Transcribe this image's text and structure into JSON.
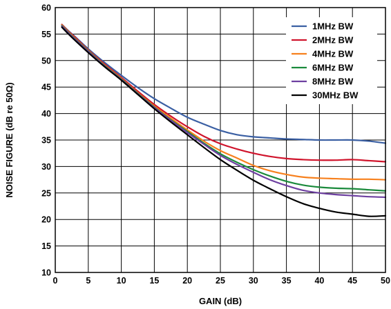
{
  "chart_data": {
    "type": "line",
    "title": "",
    "xlabel": "GAIN (dB)",
    "ylabel": "NOISE FIGURE (dB re 50Ω)",
    "xlim": [
      0,
      50
    ],
    "ylim": [
      10,
      60
    ],
    "xticks": [
      0,
      5,
      10,
      15,
      20,
      25,
      30,
      35,
      40,
      45,
      50
    ],
    "yticks": [
      10,
      15,
      20,
      25,
      30,
      35,
      40,
      45,
      50,
      55,
      60
    ],
    "grid": true,
    "legend_position": "top-right",
    "series": [
      {
        "name": "1MHz BW",
        "color": "#3a5fa3",
        "x": [
          1,
          2,
          3,
          5,
          7.5,
          10,
          12.5,
          15,
          17.5,
          20,
          22.5,
          25,
          27.5,
          30,
          32.5,
          35,
          37.5,
          40,
          42.5,
          45,
          47.5,
          50
        ],
        "y": [
          56.8,
          55.6,
          54.5,
          52.2,
          49.6,
          47.2,
          44.9,
          42.8,
          41.0,
          39.3,
          38.0,
          36.8,
          36.0,
          35.6,
          35.4,
          35.2,
          35.1,
          35.0,
          35.0,
          35.0,
          34.8,
          34.4
        ]
      },
      {
        "name": "2MHz BW",
        "color": "#d0142c",
        "x": [
          1,
          2,
          3,
          5,
          7.5,
          10,
          12.5,
          15,
          17.5,
          20,
          22.5,
          25,
          27.5,
          30,
          32.5,
          35,
          37.5,
          40,
          42.5,
          45,
          47.5,
          50
        ],
        "y": [
          56.8,
          55.5,
          54.4,
          52.0,
          49.3,
          46.8,
          44.2,
          41.7,
          39.5,
          37.5,
          35.7,
          34.3,
          33.3,
          32.5,
          31.9,
          31.5,
          31.3,
          31.2,
          31.2,
          31.3,
          31.1,
          30.9
        ]
      },
      {
        "name": "4MHz BW",
        "color": "#f7801d",
        "x": [
          1,
          2,
          3,
          5,
          7.5,
          10,
          12.5,
          15,
          17.5,
          20,
          22.5,
          25,
          27.5,
          30,
          32.5,
          35,
          37.5,
          40,
          42.5,
          45,
          47.5,
          50
        ],
        "y": [
          56.7,
          55.4,
          54.2,
          51.9,
          49.1,
          46.6,
          43.9,
          41.4,
          39.1,
          36.9,
          34.8,
          33.0,
          31.6,
          30.2,
          29.2,
          28.5,
          28.0,
          27.8,
          27.7,
          27.6,
          27.6,
          27.5
        ]
      },
      {
        "name": "6MHz BW",
        "color": "#1a8a3b",
        "x": [
          1,
          2,
          3,
          5,
          7.5,
          10,
          12.5,
          15,
          17.5,
          20,
          22.5,
          25,
          27.5,
          30,
          32.5,
          35,
          37.5,
          40,
          42.5,
          45,
          47.5,
          50
        ],
        "y": [
          56.6,
          55.3,
          54.1,
          51.8,
          49.0,
          46.5,
          43.8,
          41.2,
          38.8,
          36.6,
          34.4,
          32.4,
          30.8,
          29.4,
          28.2,
          27.2,
          26.5,
          26.1,
          25.9,
          25.8,
          25.6,
          25.4
        ]
      },
      {
        "name": "8MHz BW",
        "color": "#6d3fa0",
        "x": [
          1,
          2,
          3,
          5,
          7.5,
          10,
          12.5,
          15,
          17.5,
          20,
          22.5,
          25,
          27.5,
          30,
          32.5,
          35,
          37.5,
          40,
          42.5,
          45,
          47.5,
          50
        ],
        "y": [
          56.5,
          55.2,
          54.0,
          51.7,
          48.9,
          46.4,
          43.7,
          41.1,
          38.7,
          36.4,
          34.2,
          32.1,
          30.4,
          28.9,
          27.5,
          26.4,
          25.5,
          25.0,
          24.7,
          24.5,
          24.3,
          24.2
        ]
      },
      {
        "name": "30MHz BW",
        "color": "#000000",
        "x": [
          1,
          2,
          3,
          5,
          7.5,
          10,
          12.5,
          15,
          17.5,
          20,
          22.5,
          25,
          27.5,
          30,
          32.5,
          35,
          37.5,
          40,
          42.5,
          45,
          47.5,
          50
        ],
        "y": [
          56.3,
          55.0,
          53.8,
          51.5,
          48.8,
          46.3,
          43.6,
          40.9,
          38.4,
          36.0,
          33.6,
          31.3,
          29.3,
          27.4,
          25.8,
          24.3,
          23.0,
          22.1,
          21.4,
          21.0,
          20.6,
          20.7
        ]
      }
    ]
  }
}
